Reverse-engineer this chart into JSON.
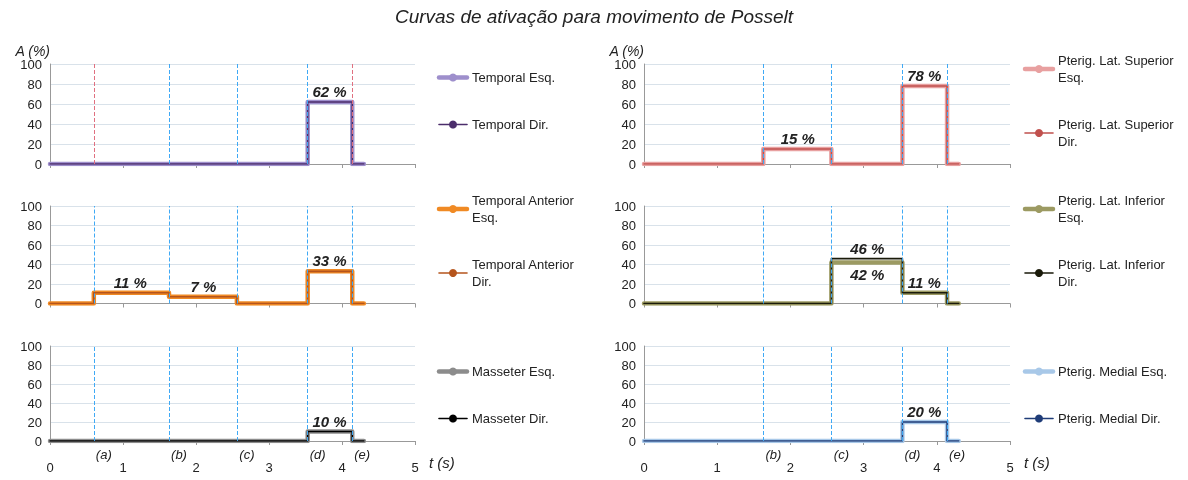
{
  "chart_data": [
    {
      "type": "step",
      "title": "Curvas de ativação para movimento de Posselt",
      "ylabel": "A (%)",
      "xlim": [
        0,
        5
      ],
      "xticks": [
        0,
        1,
        2,
        3,
        4,
        5
      ],
      "ylim": [
        0,
        100
      ],
      "yticks": [
        0,
        20,
        40,
        60,
        80,
        100
      ],
      "tick_labels": "y",
      "grid": "y",
      "legend": "right",
      "marker": "none",
      "line_style": "solid",
      "ref_lines": [
        {
          "axis": "x",
          "value": 0.6,
          "color": "#e07080",
          "line_style": "dashed"
        },
        {
          "axis": "x",
          "value": 1.63,
          "color": "#3fa9f5",
          "line_style": "dashed"
        },
        {
          "axis": "x",
          "value": 2.56,
          "color": "#3fa9f5",
          "line_style": "dashed"
        },
        {
          "axis": "x",
          "value": 3.53,
          "color": "#3fa9f5",
          "line_style": "dashed"
        },
        {
          "axis": "x",
          "value": 4.14,
          "color": "#e07080",
          "line_style": "dashed"
        }
      ],
      "annotations": [
        {
          "text": "62 %",
          "x": 3.83,
          "y": 62
        }
      ],
      "series": [
        {
          "name": "Temporal Esq.",
          "color": "#9e8fcc",
          "x": [
            0,
            3.53,
            4.14,
            4.3
          ],
          "values": [
            0,
            62,
            0,
            0
          ]
        },
        {
          "name": "Temporal Dir.",
          "color": "#4b2d6b",
          "x": [
            0,
            3.53,
            4.14,
            4.3
          ],
          "values": [
            0,
            62,
            0,
            0
          ]
        }
      ]
    },
    {
      "type": "step",
      "xlim": [
        0,
        5
      ],
      "xticks": [
        0,
        1,
        2,
        3,
        4,
        5
      ],
      "ylim": [
        0,
        100
      ],
      "yticks": [
        0,
        20,
        40,
        60,
        80,
        100
      ],
      "tick_labels": "y",
      "grid": "y",
      "legend": "right",
      "marker": "none",
      "line_style": "solid",
      "ref_lines": [
        {
          "axis": "x",
          "value": 0.6,
          "color": "#3fa9f5",
          "line_style": "dashed"
        },
        {
          "axis": "x",
          "value": 1.63,
          "color": "#3fa9f5",
          "line_style": "dashed"
        },
        {
          "axis": "x",
          "value": 2.56,
          "color": "#3fa9f5",
          "line_style": "dashed"
        },
        {
          "axis": "x",
          "value": 3.53,
          "color": "#3fa9f5",
          "line_style": "dashed"
        },
        {
          "axis": "x",
          "value": 4.14,
          "color": "#3fa9f5",
          "line_style": "dashed"
        }
      ],
      "annotations": [
        {
          "text": "11 %",
          "x": 1.1,
          "y": 11
        },
        {
          "text": "7 %",
          "x": 2.1,
          "y": 7
        },
        {
          "text": "33 %",
          "x": 3.83,
          "y": 33
        }
      ],
      "series": [
        {
          "name": "Temporal Anterior Esq.",
          "color": "#f08a24",
          "x": [
            0,
            0.6,
            1.63,
            2.56,
            3.53,
            4.14,
            4.3
          ],
          "values": [
            0,
            11,
            7,
            0,
            33,
            0,
            0
          ]
        },
        {
          "name": "Temporal Anterior Dir.",
          "color": "#b5541c",
          "x": [
            0,
            0.6,
            1.63,
            2.56,
            3.53,
            4.14,
            4.3
          ],
          "values": [
            0,
            11,
            7,
            0,
            33,
            0,
            0
          ]
        }
      ]
    },
    {
      "type": "step",
      "xlabel": "t (s)",
      "xlim": [
        0,
        5
      ],
      "xticks": [
        0,
        1,
        2,
        3,
        4,
        5
      ],
      "ylim": [
        0,
        100
      ],
      "yticks": [
        0,
        20,
        40,
        60,
        80,
        100
      ],
      "grid": "y",
      "legend": "right",
      "marker": "none",
      "line_style": "solid",
      "ref_lines": [
        {
          "axis": "x",
          "value": 0.6,
          "label": "(a)",
          "color": "#3fa9f5",
          "line_style": "dashed"
        },
        {
          "axis": "x",
          "value": 1.63,
          "label": "(b)",
          "color": "#3fa9f5",
          "line_style": "dashed"
        },
        {
          "axis": "x",
          "value": 2.56,
          "label": "(c)",
          "color": "#3fa9f5",
          "line_style": "dashed"
        },
        {
          "axis": "x",
          "value": 3.53,
          "label": "(d)",
          "color": "#3fa9f5",
          "line_style": "dashed"
        },
        {
          "axis": "x",
          "value": 4.14,
          "label": "(e)",
          "color": "#3fa9f5",
          "line_style": "dashed"
        }
      ],
      "annotations": [
        {
          "text": "10 %",
          "x": 3.83,
          "y": 10
        }
      ],
      "series": [
        {
          "name": "Masseter Esq.",
          "color": "#8c8c8c",
          "x": [
            0,
            3.53,
            4.14,
            4.3
          ],
          "values": [
            0,
            10,
            0,
            0
          ]
        },
        {
          "name": "Masseter Dir.",
          "color": "#000000",
          "x": [
            0,
            3.53,
            4.14,
            4.3
          ],
          "values": [
            0,
            10,
            0,
            0
          ]
        }
      ]
    },
    {
      "type": "step",
      "ylabel": "A (%)",
      "xlim": [
        0,
        5
      ],
      "xticks": [
        0,
        1,
        2,
        3,
        4,
        5
      ],
      "ylim": [
        0,
        100
      ],
      "yticks": [
        0,
        20,
        40,
        60,
        80,
        100
      ],
      "tick_labels": "y",
      "grid": "y",
      "legend": "right",
      "marker": "none",
      "line_style": "solid",
      "ref_lines": [
        {
          "axis": "x",
          "value": 1.63,
          "color": "#3fa9f5",
          "line_style": "dashed"
        },
        {
          "axis": "x",
          "value": 2.56,
          "color": "#3fa9f5",
          "line_style": "dashed"
        },
        {
          "axis": "x",
          "value": 3.53,
          "color": "#3fa9f5",
          "line_style": "dashed"
        },
        {
          "axis": "x",
          "value": 4.14,
          "color": "#3fa9f5",
          "line_style": "dashed"
        }
      ],
      "annotations": [
        {
          "text": "15 %",
          "x": 2.1,
          "y": 15
        },
        {
          "text": "78 %",
          "x": 3.83,
          "y": 78
        }
      ],
      "series": [
        {
          "name": "Pterig. Lat. Superior Esq.",
          "color": "#e8a0a0",
          "x": [
            0,
            1.63,
            2.56,
            3.53,
            4.14,
            4.3
          ],
          "values": [
            0,
            15,
            0,
            78,
            0,
            0
          ]
        },
        {
          "name": "Pterig. Lat. Superior Dir.",
          "color": "#c0504d",
          "x": [
            0,
            1.63,
            2.56,
            3.53,
            4.14,
            4.3
          ],
          "values": [
            0,
            15,
            0,
            78,
            0,
            0
          ]
        }
      ]
    },
    {
      "type": "step",
      "xlim": [
        0,
        5
      ],
      "xticks": [
        0,
        1,
        2,
        3,
        4,
        5
      ],
      "ylim": [
        0,
        100
      ],
      "yticks": [
        0,
        20,
        40,
        60,
        80,
        100
      ],
      "tick_labels": "y",
      "grid": "y",
      "legend": "right",
      "marker": "none",
      "line_style": "solid",
      "ref_lines": [
        {
          "axis": "x",
          "value": 1.63,
          "color": "#3fa9f5",
          "line_style": "dashed"
        },
        {
          "axis": "x",
          "value": 2.56,
          "color": "#3fa9f5",
          "line_style": "dashed"
        },
        {
          "axis": "x",
          "value": 3.53,
          "color": "#3fa9f5",
          "line_style": "dashed"
        },
        {
          "axis": "x",
          "value": 4.14,
          "color": "#3fa9f5",
          "line_style": "dashed"
        }
      ],
      "annotations": [
        {
          "text": "46 %",
          "x": 3.05,
          "y": 46
        },
        {
          "text": "42 %",
          "x": 3.05,
          "y": 42
        },
        {
          "text": "11 %",
          "x": 3.83,
          "y": 11
        }
      ],
      "series": [
        {
          "name": "Pterig. Lat. Inferior Esq.",
          "color": "#9c9a62",
          "x": [
            0,
            2.56,
            3.53,
            4.14,
            4.3
          ],
          "values": [
            0,
            42,
            11,
            0,
            0
          ]
        },
        {
          "name": "Pterig. Lat. Inferior Dir.",
          "color": "#1a1a0a",
          "x": [
            0,
            2.56,
            3.53,
            4.14,
            4.3
          ],
          "values": [
            0,
            46,
            11,
            0,
            0
          ]
        }
      ]
    },
    {
      "type": "step",
      "xlabel": "t (s)",
      "xlim": [
        0,
        5
      ],
      "xticks": [
        0,
        1,
        2,
        3,
        4,
        5
      ],
      "ylim": [
        0,
        100
      ],
      "yticks": [
        0,
        20,
        40,
        60,
        80,
        100
      ],
      "grid": "y",
      "legend": "right",
      "marker": "none",
      "line_style": "solid",
      "ref_lines": [
        {
          "axis": "x",
          "value": 1.63,
          "label": "(b)",
          "color": "#3fa9f5",
          "line_style": "dashed"
        },
        {
          "axis": "x",
          "value": 2.56,
          "label": "(c)",
          "color": "#3fa9f5",
          "line_style": "dashed"
        },
        {
          "axis": "x",
          "value": 3.53,
          "label": "(d)",
          "color": "#3fa9f5",
          "line_style": "dashed"
        },
        {
          "axis": "x",
          "value": 4.14,
          "label": "(e)",
          "color": "#3fa9f5",
          "line_style": "dashed"
        }
      ],
      "annotations": [
        {
          "text": "20 %",
          "x": 3.83,
          "y": 20
        }
      ],
      "series": [
        {
          "name": "Pterig. Medial Esq.",
          "color": "#a8c8e8",
          "x": [
            0,
            3.53,
            4.14,
            4.3
          ],
          "values": [
            0,
            20,
            0,
            0
          ]
        },
        {
          "name": "Pterig. Medial Dir.",
          "color": "#1f3c78",
          "x": [
            0,
            3.53,
            4.14,
            4.3
          ],
          "values": [
            0,
            20,
            0,
            0
          ]
        }
      ]
    }
  ]
}
